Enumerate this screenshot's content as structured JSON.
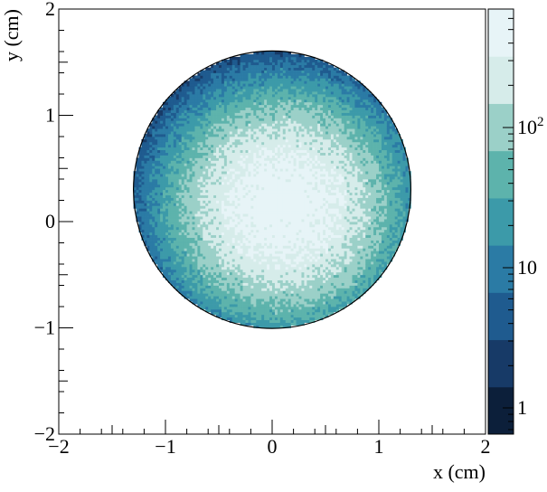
{
  "chart_data": {
    "type": "heatmap",
    "title": "",
    "xlabel": "x (cm)",
    "ylabel": "y (cm)",
    "xlim": [
      -2,
      2
    ],
    "ylim": [
      -2,
      2
    ],
    "x_ticks": [
      -2,
      -1,
      0,
      1,
      2
    ],
    "y_ticks": [
      -2,
      -1,
      0,
      1,
      2
    ],
    "x_tick_labels": [
      "−2",
      "−1",
      "0",
      "1",
      "2"
    ],
    "y_tick_labels": [
      "−2",
      "−1",
      "0",
      "1",
      "2"
    ],
    "grid": false,
    "colorbar": {
      "scale": "log",
      "zlim": [
        0.65,
        700
      ],
      "ticks": [
        1,
        10,
        100
      ],
      "tick_labels": [
        {
          "base": "1",
          "exp": ""
        },
        {
          "base": "10",
          "exp": ""
        },
        {
          "base": "10",
          "exp": "2"
        }
      ],
      "palette": [
        "#0c1f3a",
        "#173a67",
        "#1f5b8f",
        "#2b7ba5",
        "#3c9aa9",
        "#5db3ac",
        "#9bd0c8",
        "#d6ecea",
        "#e7f4f7"
      ]
    },
    "distribution": {
      "region": "circle",
      "center": [
        0.0,
        0.3
      ],
      "radius": 1.3,
      "peak_center": [
        0.1,
        0.15
      ],
      "peak_value": 600,
      "bin_width_cm": 0.025
    }
  }
}
